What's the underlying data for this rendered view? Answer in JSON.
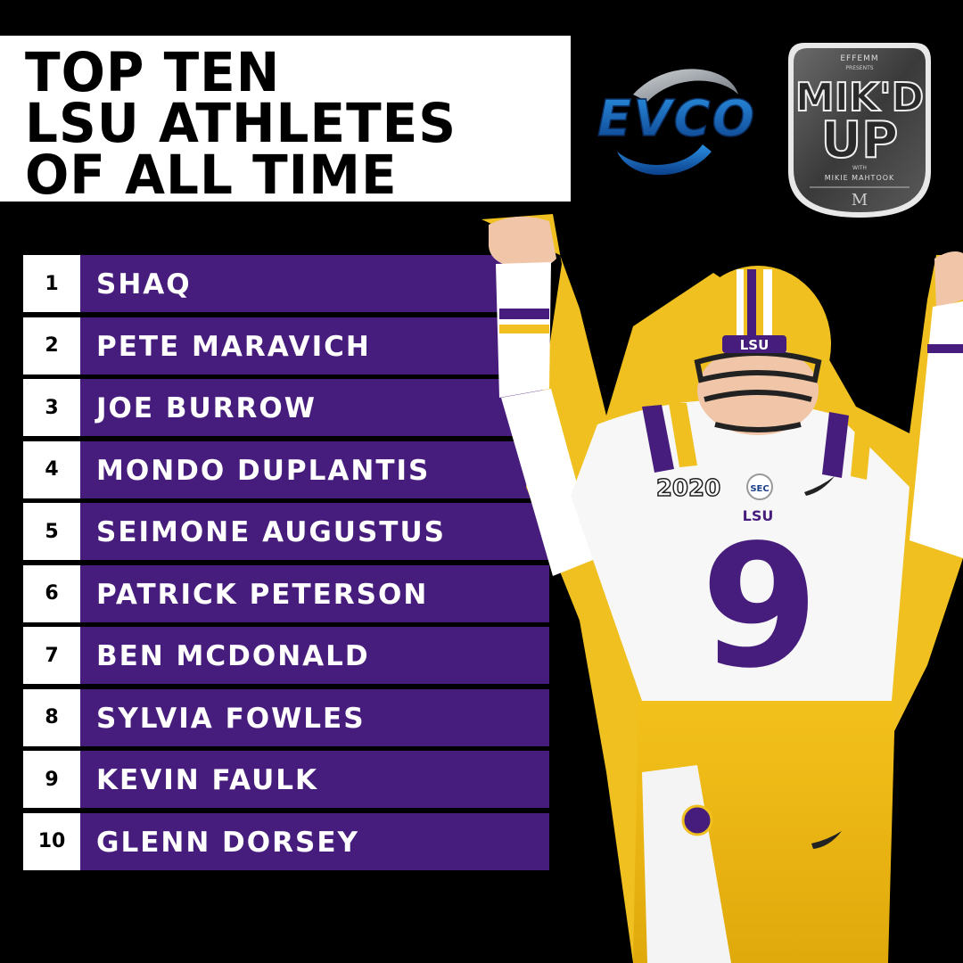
{
  "title": {
    "line1": "TOP TEN",
    "line2": "LSU ATHLETES",
    "line3": "OF ALL TIME"
  },
  "sponsor_logo": {
    "text": "EVCO",
    "icon": "evco-logo"
  },
  "podcast_badge": {
    "top_text": "EFFEMM",
    "presents": "PRESENTS",
    "main_line1": "MIK'D",
    "main_line2": "UP",
    "with": "WITH",
    "host": "MIKIE MAHTOOK",
    "monogram": "M",
    "icon": "mikd-up-badge"
  },
  "rankings": [
    {
      "rank": "1",
      "name": "SHAQ"
    },
    {
      "rank": "2",
      "name": "PETE MARAVICH"
    },
    {
      "rank": "3",
      "name": "JOE BURROW"
    },
    {
      "rank": "4",
      "name": "MONDO DUPLANTIS"
    },
    {
      "rank": "5",
      "name": "SEIMONE AUGUSTUS"
    },
    {
      "rank": "6",
      "name": "PATRICK PETERSON"
    },
    {
      "rank": "7",
      "name": "BEN MCDONALD"
    },
    {
      "rank": "8",
      "name": "SYLVIA FOWLES"
    },
    {
      "rank": "9",
      "name": "KEVIN FAULK"
    },
    {
      "rank": "10",
      "name": "GLENN DORSEY"
    }
  ],
  "player": {
    "helmet_text": "LSU",
    "chest_text": "LSU",
    "jersey_number": "9",
    "patch_text": "2020",
    "conference_patch": "SEC",
    "icon": "football-player-photo"
  },
  "colors": {
    "background": "#000000",
    "lsu_purple": "#461d7c",
    "lsu_gold": "#fdd023",
    "white": "#ffffff"
  }
}
